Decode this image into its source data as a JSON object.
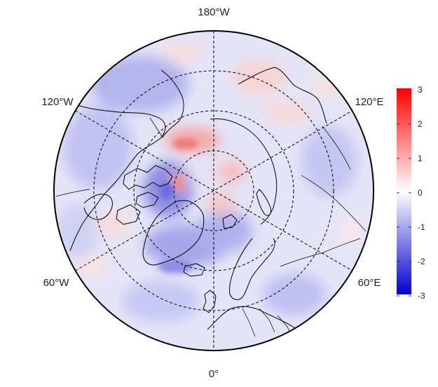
{
  "map": {
    "projection": "north-polar-stereographic",
    "longitude_labels": {
      "top": "180°W",
      "upper_left": "120°W",
      "upper_right": "120°E",
      "lower_left": "60°W",
      "lower_right": "60°E",
      "bottom": "0°"
    },
    "graticule": "dashed"
  },
  "colorbar": {
    "ticks": [
      "3",
      "2",
      "1",
      "0",
      "-1",
      "-2",
      "-3"
    ],
    "min": -3,
    "max": 3,
    "colors": {
      "high": "#ff0000",
      "mid": "#ffffff",
      "low": "#0000cc"
    }
  },
  "colors": {
    "anomaly_positive": "#f2a0a0",
    "anomaly_negative": "#8f8ff0",
    "background_tint": "#dcdcf6"
  }
}
